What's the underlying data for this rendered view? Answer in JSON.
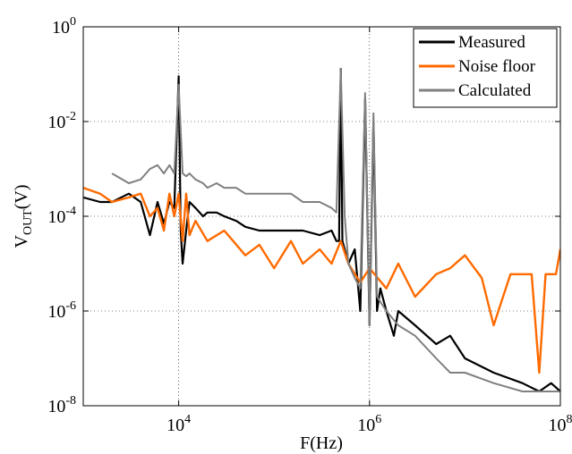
{
  "chart_data": {
    "type": "line",
    "title": "",
    "xlabel": "F(Hz)",
    "ylabel": {
      "main": "V",
      "sub": "OUT",
      "rest": "(V)"
    },
    "x_scale": "log",
    "y_scale": "log",
    "xlim": [
      1000,
      100000000
    ],
    "ylim": [
      1e-08,
      1
    ],
    "grid": true,
    "legend_position": "top-right",
    "x_ticks": [
      {
        "value": 10000,
        "base": "10",
        "exp": "4"
      },
      {
        "value": 1000000,
        "base": "10",
        "exp": "6"
      },
      {
        "value": 100000000,
        "base": "10",
        "exp": "8"
      }
    ],
    "y_ticks": [
      {
        "value": 1,
        "base": "10",
        "exp": "0"
      },
      {
        "value": 0.01,
        "base": "10",
        "exp": "-2"
      },
      {
        "value": 0.0001,
        "base": "10",
        "exp": "-4"
      },
      {
        "value": 1e-06,
        "base": "10",
        "exp": "-6"
      },
      {
        "value": 1e-08,
        "base": "10",
        "exp": "-8"
      }
    ],
    "series": [
      {
        "name": "Measured",
        "color": "#000000",
        "x": [
          1000,
          1500,
          2000,
          3000,
          4000,
          5000,
          6000,
          7000,
          8000,
          9000,
          10000,
          10500,
          11000,
          12000,
          13000,
          15000,
          18000,
          20000,
          25000,
          30000,
          40000,
          50000,
          70000,
          100000,
          150000,
          200000,
          300000,
          400000,
          450000,
          480000,
          500000,
          520000,
          550000,
          600000,
          700000,
          800000,
          900000,
          1000000,
          1100000,
          1200000,
          1300000,
          1500000,
          1800000,
          2000000,
          3000000,
          5000000,
          7000000,
          10000000,
          20000000,
          40000000,
          60000000,
          80000000,
          100000000
        ],
        "values": [
          0.00025,
          0.0002,
          0.0002,
          0.0003,
          0.0002,
          4e-05,
          0.0002,
          7e-05,
          0.0002,
          0.00015,
          0.09,
          5e-05,
          1e-05,
          5e-05,
          0.0002,
          0.00015,
          0.0001,
          0.00012,
          0.00012,
          0.0001,
          8e-05,
          6e-05,
          5e-05,
          5e-05,
          5e-05,
          5e-05,
          4e-05,
          5e-05,
          3e-05,
          3e-05,
          0.13,
          3e-05,
          2e-05,
          1e-05,
          2e-05,
          1e-06,
          0.03,
          5e-07,
          0.01,
          1e-06,
          3e-06,
          1e-06,
          3e-07,
          1e-06,
          5e-07,
          2e-07,
          3e-07,
          1e-07,
          5e-08,
          3e-08,
          2e-08,
          3e-08,
          2e-08
        ]
      },
      {
        "name": "Noise floor",
        "color": "#ff6a00",
        "x": [
          1000,
          1500,
          2000,
          3000,
          4000,
          5000,
          6000,
          7000,
          8000,
          9000,
          10000,
          11000,
          12000,
          13000,
          15000,
          20000,
          30000,
          50000,
          70000,
          100000,
          150000,
          200000,
          300000,
          400000,
          500000,
          600000,
          800000,
          1000000,
          1500000,
          2000000,
          3000000,
          5000000,
          7000000,
          10000000,
          15000000,
          20000000,
          30000000,
          40000000,
          50000000,
          60000000,
          70000000,
          80000000,
          90000000,
          100000000
        ],
        "values": [
          0.0004,
          0.0003,
          0.0002,
          0.00025,
          0.0003,
          0.0001,
          0.00015,
          5e-05,
          0.0003,
          0.0001,
          0.0003,
          3e-05,
          0.0003,
          4e-05,
          8e-05,
          3e-05,
          5e-05,
          1.5e-05,
          2.5e-05,
          8e-06,
          3e-05,
          1e-05,
          2e-05,
          1e-05,
          3e-05,
          1e-05,
          4e-06,
          8e-06,
          3e-06,
          1e-05,
          2e-06,
          6e-06,
          8e-06,
          1.5e-05,
          5e-06,
          5e-07,
          6e-06,
          6e-06,
          6e-06,
          5e-08,
          6e-06,
          6e-06,
          6e-06,
          2e-05
        ]
      },
      {
        "name": "Calculated",
        "color": "#808080",
        "x": [
          2000,
          3000,
          4000,
          5000,
          6000,
          7000,
          8000,
          9000,
          10000,
          11000,
          12000,
          13000,
          15000,
          18000,
          20000,
          25000,
          30000,
          40000,
          50000,
          70000,
          100000,
          150000,
          200000,
          300000,
          400000,
          450000,
          500000,
          550000,
          600000,
          700000,
          800000,
          900000,
          1000000,
          1100000,
          1200000,
          1500000,
          2000000,
          3000000,
          5000000,
          7000000,
          10000000,
          20000000,
          40000000,
          60000000,
          80000000,
          100000000
        ],
        "values": [
          0.0008,
          0.0005,
          0.0006,
          0.001,
          0.0012,
          0.0008,
          0.0012,
          0.0008,
          0.06,
          0.0008,
          0.0007,
          0.0008,
          0.0006,
          0.0005,
          0.0004,
          0.0005,
          0.0004,
          0.0004,
          0.0003,
          0.0003,
          0.0003,
          0.0003,
          0.0002,
          0.0002,
          0.00015,
          0.00012,
          0.13,
          0.0001,
          1e-05,
          5e-06,
          3e-06,
          0.04,
          5e-07,
          0.015,
          2e-06,
          1e-06,
          5e-07,
          3e-07,
          1e-07,
          5e-08,
          5e-08,
          3e-08,
          2e-08,
          2e-08,
          2e-08,
          2e-08
        ]
      }
    ]
  }
}
